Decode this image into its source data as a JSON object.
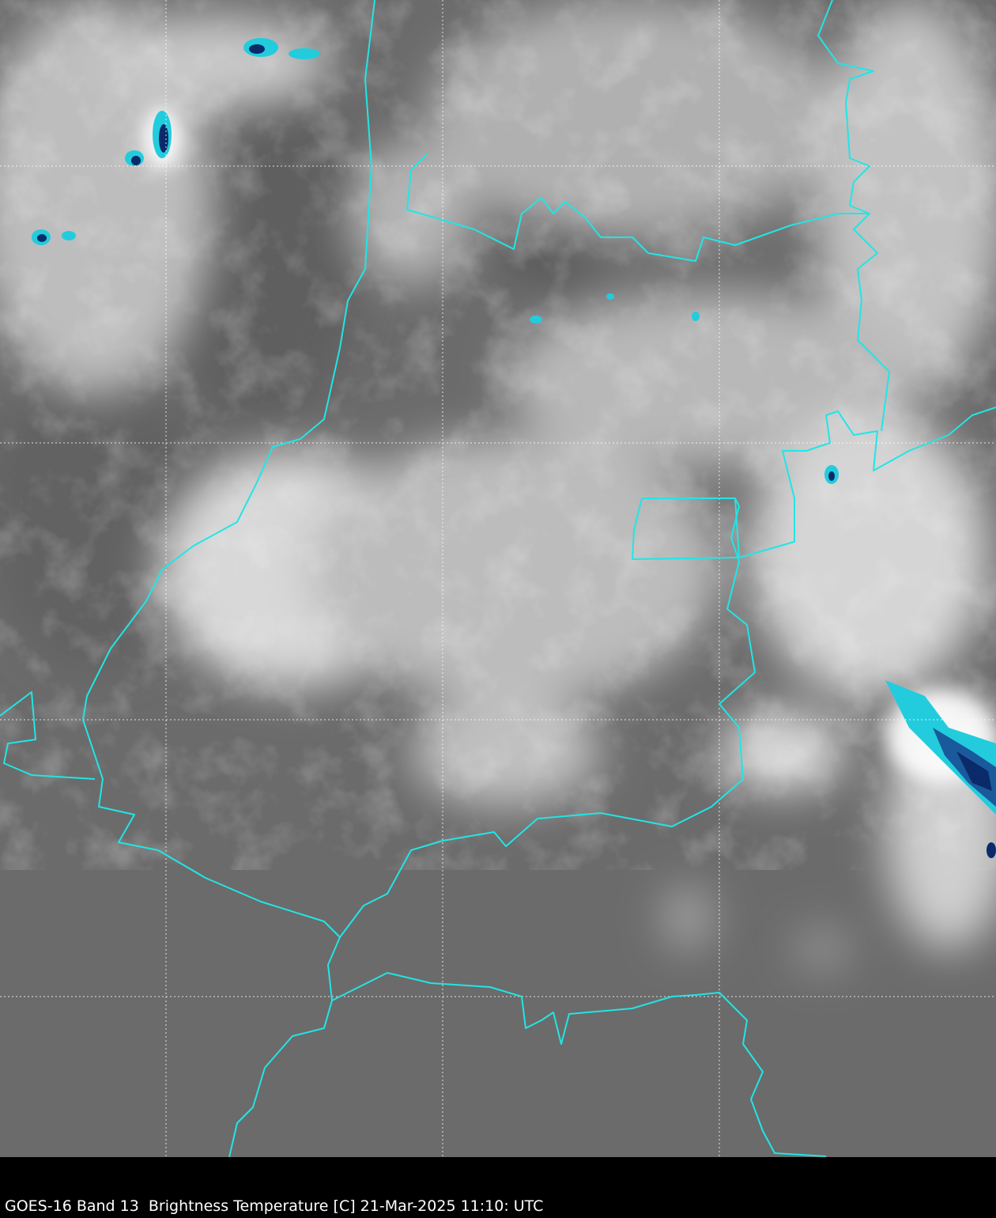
{
  "caption": "GOES-16 Band 13  Brightness Temperature [C] 21-Mar-2025 11:10: UTC",
  "colors": {
    "background": "#000000",
    "ground": "#6e6e6e",
    "cloud": "#e8e8e8",
    "border": "#22e5e5",
    "gridline": "#ffffff",
    "cold_cloud_top_light": "#22ccdd",
    "cold_cloud_top_dark": "#0a2a6a"
  },
  "gridlines": {
    "style": "dotted",
    "visible": true
  },
  "overlays": [
    "country-borders",
    "lat-lon-grid"
  ]
}
